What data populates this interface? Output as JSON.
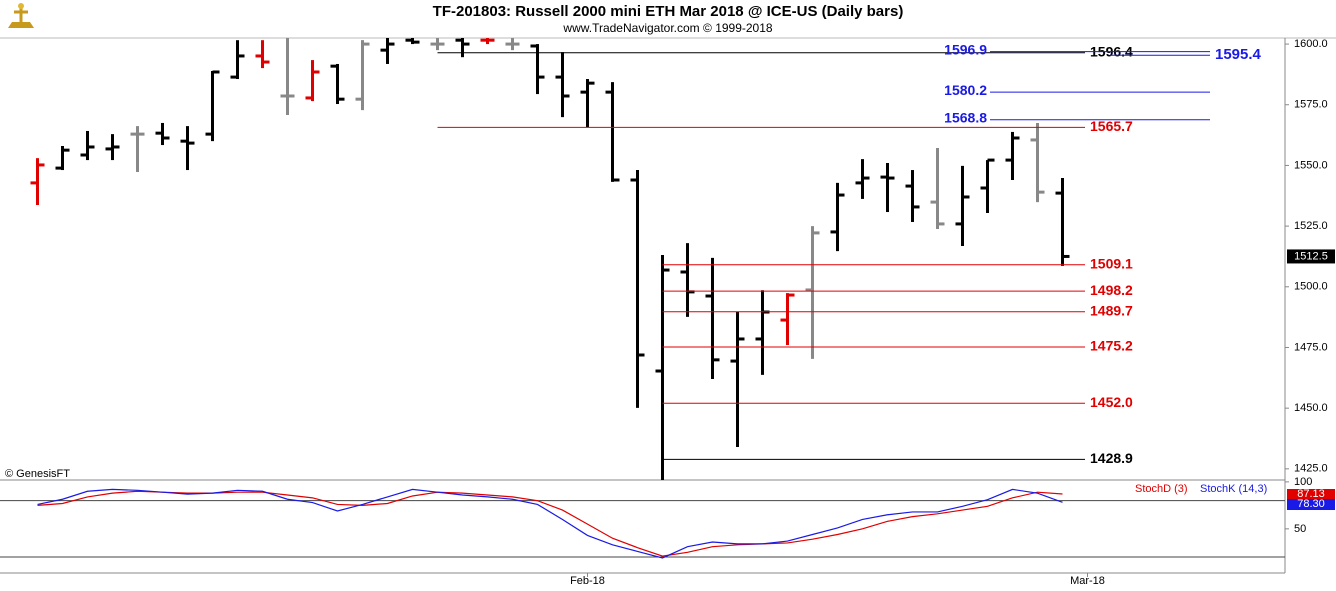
{
  "chart_data": [
    {
      "type": "ohlc",
      "title": "TF-201803:  Russell 2000 mini ETH Mar 2018 @ ICE-US  (Daily bars)",
      "subtitle": "www.TradeNavigator.com © 1999-2018",
      "watermark": "© GenesisFT",
      "x": [
        0,
        1,
        2,
        3,
        4,
        5,
        6,
        7,
        8,
        9,
        10,
        11,
        12,
        13,
        14,
        15,
        16,
        17,
        18,
        19,
        20,
        21,
        22,
        23,
        24,
        25,
        26,
        27,
        28,
        29,
        30,
        31,
        32,
        33,
        34,
        35,
        36,
        37,
        38,
        39,
        40,
        41
      ],
      "open": [
        1542.8,
        1548.9,
        1554.3,
        1556.8,
        1562.9,
        1563.3,
        1560.0,
        1562.9,
        1586.4,
        1595.1,
        1578.6,
        1577.8,
        1590.9,
        1577.3,
        1597.5,
        1601.6,
        1600.0,
        1601.6,
        1601.6,
        1600.0,
        1599.2,
        1586.4,
        1580.2,
        1580.2,
        1544.0,
        1465.3,
        1506.1,
        1496.2,
        1469.4,
        1478.5,
        1486.3,
        1498.7,
        1522.6,
        1542.8,
        1545.2,
        1541.5,
        1534.9,
        1525.9,
        1540.7,
        1552.2,
        1560.5,
        1538.6
      ],
      "high": [
        1553.0,
        1558.0,
        1564.2,
        1562.9,
        1566.2,
        1567.5,
        1566.2,
        1588.9,
        1601.6,
        1601.6,
        1602.5,
        1593.4,
        1591.8,
        1601.6,
        1602.5,
        1602.5,
        1602.5,
        1602.5,
        1602.5,
        1602.5,
        1600.0,
        1596.7,
        1585.6,
        1584.3,
        1548.1,
        1513.1,
        1518.0,
        1511.9,
        1489.6,
        1498.6,
        1497.4,
        1525.0,
        1542.8,
        1552.6,
        1551.0,
        1548.1,
        1557.2,
        1549.8,
        1552.2,
        1563.8,
        1567.5,
        1544.8
      ],
      "low": [
        1533.7,
        1548.1,
        1552.2,
        1552.2,
        1547.3,
        1558.4,
        1548.1,
        1560.0,
        1585.6,
        1590.1,
        1570.8,
        1576.5,
        1575.3,
        1572.8,
        1591.8,
        1600.0,
        1597.5,
        1594.6,
        1600.0,
        1597.5,
        1579.4,
        1569.9,
        1565.8,
        1543.2,
        1450.1,
        1419.6,
        1487.6,
        1462.0,
        1434.0,
        1463.7,
        1476.0,
        1470.3,
        1514.7,
        1536.2,
        1530.8,
        1526.7,
        1523.8,
        1516.8,
        1530.4,
        1544.0,
        1534.9,
        1508.6
      ],
      "close": [
        1550.2,
        1556.3,
        1557.6,
        1557.6,
        1562.9,
        1561.3,
        1559.2,
        1588.5,
        1595.1,
        1592.6,
        1578.6,
        1588.5,
        1577.3,
        1600.0,
        1600.0,
        1600.8,
        1600.0,
        1600.0,
        1601.6,
        1600.0,
        1586.4,
        1578.6,
        1583.9,
        1544.0,
        1471.9,
        1506.9,
        1497.9,
        1469.9,
        1478.5,
        1489.6,
        1496.6,
        1522.2,
        1537.8,
        1544.8,
        1544.8,
        1532.9,
        1525.9,
        1537.0,
        1552.2,
        1561.3,
        1539.0,
        1512.5
      ],
      "colors": [
        "#e00000",
        "#000000",
        "#000000",
        "#000000",
        "#888888",
        "#000000",
        "#000000",
        "#000000",
        "#000000",
        "#e00000",
        "#888888",
        "#e00000",
        "#000000",
        "#888888",
        "#000000",
        "#000000",
        "#888888",
        "#000000",
        "#e00000",
        "#888888",
        "#000000",
        "#000000",
        "#000000",
        "#000000",
        "#000000",
        "#000000",
        "#000000",
        "#000000",
        "#000000",
        "#000000",
        "#e00000",
        "#888888",
        "#000000",
        "#000000",
        "#000000",
        "#000000",
        "#888888",
        "#000000",
        "#000000",
        "#000000",
        "#888888",
        "#000000"
      ],
      "xlim": [
        -1.5,
        49.9
      ],
      "ylim": [
        1420.4,
        1602.5
      ],
      "yticks": [
        {
          "value": 1425,
          "label": "1425.0"
        },
        {
          "value": 1450,
          "label": "1450.0"
        },
        {
          "value": 1475,
          "label": "1475.0"
        },
        {
          "value": 1500,
          "label": "1500.0"
        },
        {
          "value": 1525,
          "label": "1525.0"
        },
        {
          "value": 1550,
          "label": "1550.0"
        },
        {
          "value": 1575,
          "label": "1575.0"
        },
        {
          "value": 1600,
          "label": "1600.0"
        }
      ],
      "levels": [
        {
          "value": 1596.4,
          "label": "1596.4",
          "color": "#000000",
          "from": 16,
          "anchor": "right"
        },
        {
          "value": 1596.9,
          "label": "1596.9",
          "color": "#1a1ae6",
          "anchor": "left"
        },
        {
          "value": 1595.4,
          "label": "1595.4",
          "color": "#1a1ae6",
          "anchor": "far-right"
        },
        {
          "value": 1580.2,
          "label": "1580.2",
          "color": "#1a1ae6",
          "anchor": "left"
        },
        {
          "value": 1568.8,
          "label": "1568.8",
          "color": "#1a1ae6",
          "anchor": "left"
        },
        {
          "value": 1565.7,
          "label": "1565.7",
          "color": "#e00000",
          "from": 16,
          "anchor": "right"
        },
        {
          "value": 1509.1,
          "label": "1509.1",
          "color": "#e00000",
          "from": 25,
          "anchor": "right"
        },
        {
          "value": 1498.2,
          "label": "1498.2",
          "color": "#e00000",
          "from": 25,
          "anchor": "right"
        },
        {
          "value": 1489.7,
          "label": "1489.7",
          "color": "#e00000",
          "from": 25,
          "anchor": "right"
        },
        {
          "value": 1475.2,
          "label": "1475.2",
          "color": "#e00000",
          "from": 25,
          "anchor": "right"
        },
        {
          "value": 1452.0,
          "label": "1452.0",
          "color": "#e00000",
          "from": 25,
          "anchor": "right"
        },
        {
          "value": 1428.9,
          "label": "1428.9",
          "color": "#000000",
          "from": 25,
          "anchor": "right"
        }
      ]
    },
    {
      "type": "line",
      "x": [
        0,
        1,
        2,
        3,
        4,
        5,
        6,
        7,
        8,
        9,
        10,
        11,
        12,
        13,
        14,
        15,
        16,
        17,
        18,
        19,
        20,
        21,
        22,
        23,
        24,
        25,
        26,
        27,
        28,
        29,
        30,
        31,
        32,
        33,
        34,
        35,
        36,
        37,
        38,
        39,
        40,
        41
      ],
      "series": [
        {
          "name": "StochD (3)",
          "color": "#e00000",
          "values": [
            75,
            77,
            84,
            88,
            90,
            89,
            88,
            88,
            89,
            89,
            86,
            83,
            76,
            75,
            77,
            85,
            89,
            88,
            86,
            84,
            80,
            70,
            55,
            40,
            30,
            21,
            25,
            31,
            33,
            34,
            35,
            39,
            44,
            50,
            58,
            63,
            66,
            70,
            74,
            83,
            89,
            87.13
          ]
        },
        {
          "name": "StochK (14,3)",
          "color": "#1a1ae6",
          "values": [
            76,
            81.5,
            90,
            92,
            91,
            89,
            87,
            88,
            91,
            90,
            81.5,
            78,
            69,
            76,
            84,
            92,
            89,
            86,
            84,
            81.5,
            76,
            60,
            43,
            33,
            26,
            19,
            31,
            36,
            34,
            34,
            37,
            44,
            51,
            60,
            65,
            68,
            68,
            74,
            81,
            92,
            88,
            78.3
          ],
          "value_labels": [
            null,
            null,
            null,
            null,
            null,
            null,
            null,
            null,
            null,
            null,
            null,
            null,
            null,
            null,
            null,
            null,
            null,
            null,
            null,
            null,
            null,
            null,
            null,
            null,
            null,
            null,
            null,
            null,
            null,
            null,
            null,
            null,
            null,
            null,
            null,
            null,
            null,
            null,
            null,
            null,
            null,
            "78.30"
          ]
        }
      ],
      "xlim": [
        -1.5,
        49.9
      ],
      "ylim": [
        3,
        102
      ],
      "yticks": [
        50,
        100
      ],
      "reference_lines": [
        20,
        80
      ],
      "xticks": [
        {
          "value": 22,
          "label": "Feb-18"
        },
        {
          "value": 42,
          "label": "Mar-18"
        }
      ]
    }
  ]
}
